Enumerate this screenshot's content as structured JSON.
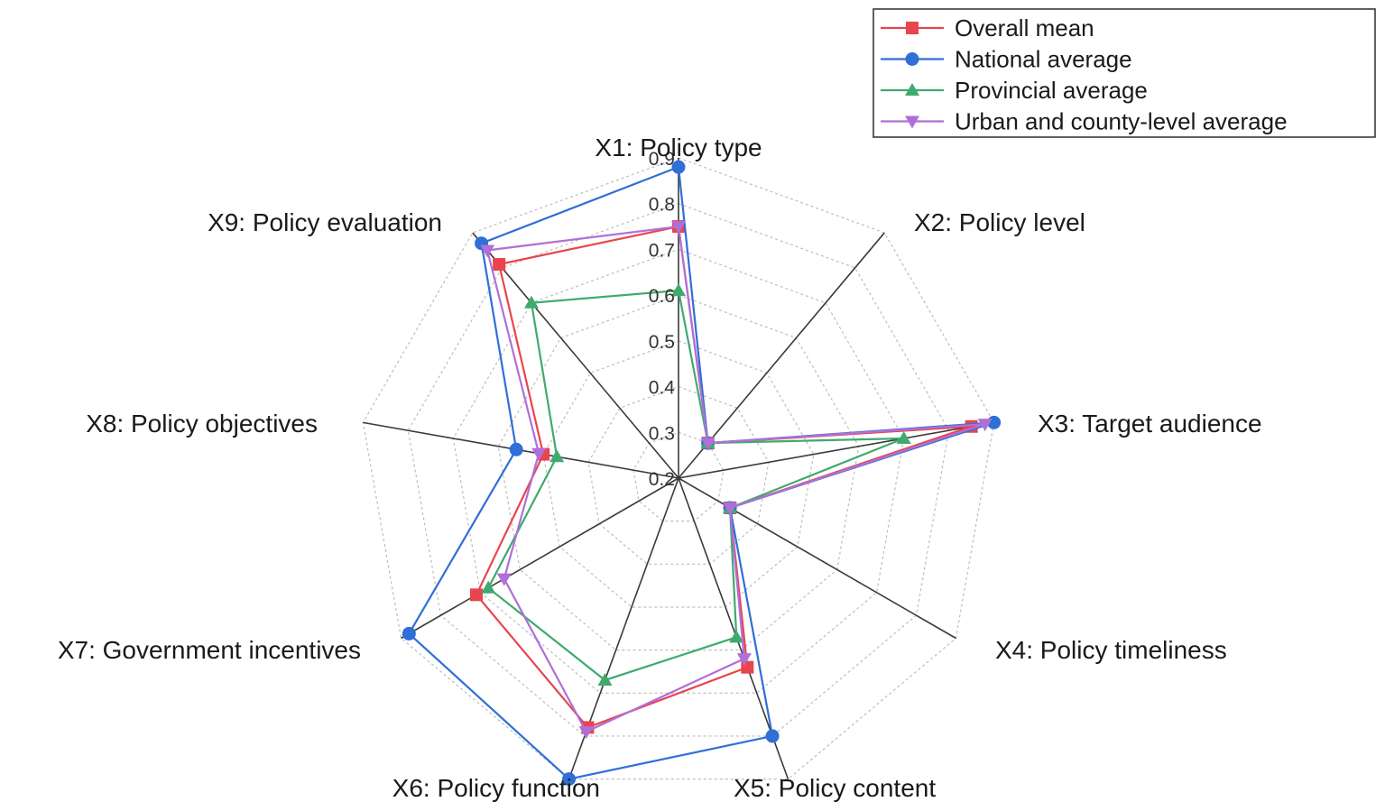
{
  "chart_data": {
    "type": "radar",
    "axes": [
      "X1: Policy type",
      "X2: Policy level",
      "X3: Target audience",
      "X4: Policy timeliness",
      "X5: Policy content",
      "X6: Policy function",
      "X7: Government incentives",
      "X8: Policy objectives",
      "X9: Policy evaluation"
    ],
    "ticks": [
      "0.2",
      "0.3",
      "0.4",
      "0.5",
      "0.6",
      "0.7",
      "0.8",
      "0.9"
    ],
    "range": [
      0.2,
      0.9
    ],
    "grid": true,
    "legend_position": "top-right",
    "series": [
      {
        "name": "Overall mean",
        "color": "#e8454f",
        "marker": "square",
        "values": [
          0.75,
          0.3,
          0.85,
          0.33,
          0.64,
          0.78,
          0.71,
          0.5,
          0.81
        ]
      },
      {
        "name": "National average",
        "color": "#2f6fd6",
        "marker": "circle",
        "values": [
          0.88,
          0.3,
          0.9,
          0.33,
          0.8,
          0.9,
          0.88,
          0.56,
          0.87
        ]
      },
      {
        "name": "Provincial average",
        "color": "#3faa6e",
        "marker": "triangle-up",
        "values": [
          0.61,
          0.3,
          0.7,
          0.33,
          0.57,
          0.67,
          0.68,
          0.47,
          0.7
        ]
      },
      {
        "name": "Urban and county-level average",
        "color": "#b06fd8",
        "marker": "triangle-down",
        "values": [
          0.75,
          0.3,
          0.88,
          0.33,
          0.62,
          0.79,
          0.64,
          0.51,
          0.85
        ]
      }
    ]
  }
}
